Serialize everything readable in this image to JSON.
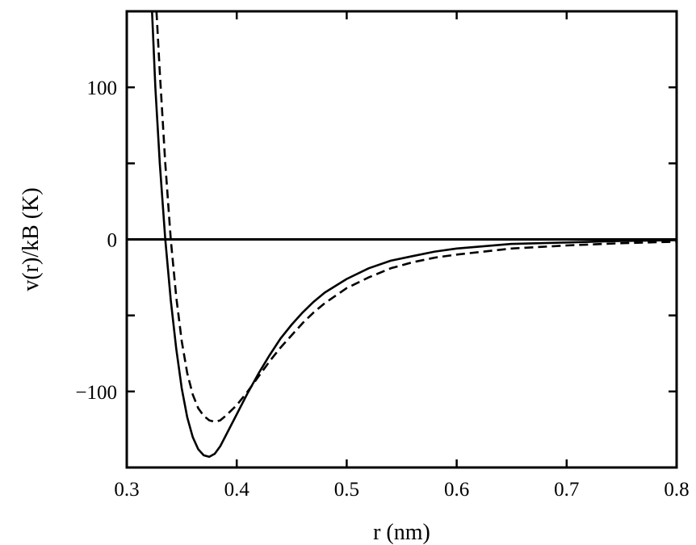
{
  "chart_data": {
    "type": "line",
    "title": "",
    "xlabel": "r (nm)",
    "ylabel": "v(r)/kB (K)",
    "xlim": [
      0.3,
      0.8
    ],
    "ylim": [
      -150,
      150
    ],
    "x_ticks": [
      0.3,
      0.4,
      0.5,
      0.6,
      0.7,
      0.8
    ],
    "y_ticks": [
      -100,
      0,
      100
    ],
    "x_tick_labels": [
      "0.3",
      "0.4",
      "0.5",
      "0.6",
      "0.7",
      "0.8"
    ],
    "y_tick_labels": [
      "−100",
      "0",
      "100"
    ],
    "zero_line": true,
    "grid": false,
    "legend": "none",
    "series": [
      {
        "name": "solid",
        "style": "solid",
        "points": [
          [
            0.323,
            150
          ],
          [
            0.326,
            100
          ],
          [
            0.33,
            50
          ],
          [
            0.335,
            0
          ],
          [
            0.34,
            -40
          ],
          [
            0.345,
            -72
          ],
          [
            0.35,
            -98
          ],
          [
            0.355,
            -117
          ],
          [
            0.36,
            -130
          ],
          [
            0.365,
            -138
          ],
          [
            0.37,
            -142
          ],
          [
            0.375,
            -143
          ],
          [
            0.38,
            -141
          ],
          [
            0.385,
            -136
          ],
          [
            0.39,
            -129
          ],
          [
            0.4,
            -115
          ],
          [
            0.41,
            -101
          ],
          [
            0.42,
            -88
          ],
          [
            0.43,
            -76
          ],
          [
            0.44,
            -65
          ],
          [
            0.45,
            -56
          ],
          [
            0.46,
            -48
          ],
          [
            0.47,
            -41
          ],
          [
            0.48,
            -35
          ],
          [
            0.5,
            -26
          ],
          [
            0.52,
            -19
          ],
          [
            0.54,
            -14
          ],
          [
            0.56,
            -11
          ],
          [
            0.58,
            -8
          ],
          [
            0.6,
            -6
          ],
          [
            0.65,
            -3
          ],
          [
            0.7,
            -2
          ],
          [
            0.75,
            -1
          ],
          [
            0.8,
            -0.5
          ]
        ]
      },
      {
        "name": "dashed",
        "style": "dashed",
        "points": [
          [
            0.327,
            150
          ],
          [
            0.33,
            110
          ],
          [
            0.335,
            50
          ],
          [
            0.34,
            0
          ],
          [
            0.345,
            -38
          ],
          [
            0.35,
            -67
          ],
          [
            0.355,
            -88
          ],
          [
            0.36,
            -102
          ],
          [
            0.365,
            -111
          ],
          [
            0.37,
            -116
          ],
          [
            0.375,
            -119
          ],
          [
            0.38,
            -120
          ],
          [
            0.385,
            -119
          ],
          [
            0.39,
            -116
          ],
          [
            0.4,
            -109
          ],
          [
            0.41,
            -100
          ],
          [
            0.42,
            -90
          ],
          [
            0.43,
            -80
          ],
          [
            0.44,
            -71
          ],
          [
            0.45,
            -63
          ],
          [
            0.46,
            -55
          ],
          [
            0.47,
            -48
          ],
          [
            0.48,
            -42
          ],
          [
            0.5,
            -32
          ],
          [
            0.52,
            -25
          ],
          [
            0.54,
            -19
          ],
          [
            0.56,
            -15
          ],
          [
            0.58,
            -12
          ],
          [
            0.6,
            -10
          ],
          [
            0.65,
            -6
          ],
          [
            0.7,
            -4
          ],
          [
            0.75,
            -2.5
          ],
          [
            0.8,
            -1.5
          ]
        ]
      }
    ]
  }
}
